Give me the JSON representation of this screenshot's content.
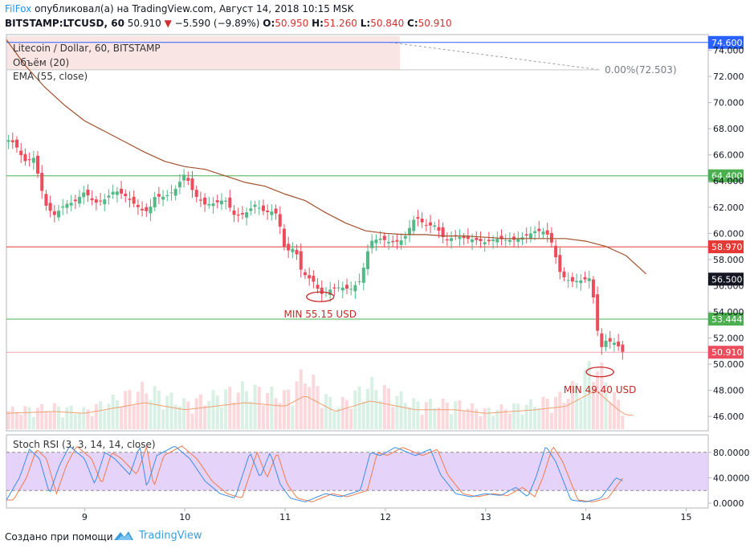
{
  "header": {
    "author": "FilFox",
    "published_text": "опубликовал(а) на TradingView.com, Август 14, 2018 10:15 MSK",
    "symbol": "BITSTAMP:LTCUSD, 60",
    "last": "50.910",
    "change": "−5.590 (−9.89%)",
    "o_label": "O:",
    "o": "50.950",
    "h_label": "H:",
    "h": "51.260",
    "l_label": "L:",
    "l": "50.840",
    "c_label": "C:",
    "c": "50.910"
  },
  "legend": {
    "title": "Litecoin / Dollar, 60, BITSTAMP",
    "volume": "Объём (20)",
    "ema": "EMA (55, close)",
    "stoch": "Stoch RSI (3, 3, 14, 14, close)"
  },
  "footer": {
    "created_with": "Создано при помощи",
    "brand": "TradingView"
  },
  "colors": {
    "up": "#53b987",
    "down": "#eb4d5c",
    "ema": "#a0522d",
    "stoch_k": "#3a8ee6",
    "stoch_d": "#f07a4a",
    "stoch_band": "#e0c8f8"
  },
  "chart_data": {
    "type": "candlestick",
    "title": "Litecoin / Dollar, 60, BITSTAMP",
    "y_ticks": [
      "74.000",
      "72.000",
      "70.000",
      "68.000",
      "66.000",
      "64.000",
      "62.000",
      "60.000",
      "58.000",
      "56.000",
      "54.000",
      "52.000",
      "50.000",
      "48.000",
      "46.000"
    ],
    "ylim": [
      44.9,
      75.2
    ],
    "x_ticks": [
      "9",
      "10",
      "11",
      "12",
      "13",
      "14",
      "15"
    ],
    "x_tick_days": [
      9,
      10,
      11,
      12,
      13,
      14,
      15
    ],
    "xlim": [
      8.22,
      15.22
    ],
    "ohlc_waypoints": [
      [
        8.22,
        67.2
      ],
      [
        8.3,
        66.9
      ],
      [
        8.4,
        65.5
      ],
      [
        8.5,
        65.8
      ],
      [
        8.55,
        63.9
      ],
      [
        8.62,
        62.0
      ],
      [
        8.7,
        61.4
      ],
      [
        8.8,
        62.2
      ],
      [
        8.9,
        62.4
      ],
      [
        9.0,
        63.2
      ],
      [
        9.1,
        62.3
      ],
      [
        9.2,
        62.6
      ],
      [
        9.3,
        63.3
      ],
      [
        9.4,
        62.9
      ],
      [
        9.5,
        62.2
      ],
      [
        9.6,
        61.6
      ],
      [
        9.65,
        61.9
      ],
      [
        9.7,
        62.8
      ],
      [
        9.8,
        62.8
      ],
      [
        9.9,
        63.3
      ],
      [
        10.0,
        64.6
      ],
      [
        10.05,
        63.7
      ],
      [
        10.1,
        62.9
      ],
      [
        10.2,
        62.2
      ],
      [
        10.3,
        62.3
      ],
      [
        10.4,
        62.6
      ],
      [
        10.5,
        61.3
      ],
      [
        10.6,
        61.5
      ],
      [
        10.7,
        62.2
      ],
      [
        10.8,
        61.6
      ],
      [
        10.9,
        61.7
      ],
      [
        10.95,
        60.5
      ],
      [
        11.0,
        58.6
      ],
      [
        11.1,
        58.9
      ],
      [
        11.15,
        57.3
      ],
      [
        11.2,
        56.8
      ],
      [
        11.3,
        56.2
      ],
      [
        11.35,
        55.3
      ],
      [
        11.45,
        55.7
      ],
      [
        11.55,
        55.9
      ],
      [
        11.65,
        55.7
      ],
      [
        11.75,
        56.4
      ],
      [
        11.85,
        59.4
      ],
      [
        11.95,
        59.6
      ],
      [
        12.05,
        59.3
      ],
      [
        12.15,
        59.4
      ],
      [
        12.2,
        59.8
      ],
      [
        12.3,
        61.3
      ],
      [
        12.4,
        60.6
      ],
      [
        12.5,
        60.6
      ],
      [
        12.6,
        59.4
      ],
      [
        12.7,
        59.8
      ],
      [
        12.8,
        59.6
      ],
      [
        12.9,
        59.5
      ],
      [
        13.0,
        59.3
      ],
      [
        13.1,
        59.6
      ],
      [
        13.2,
        59.5
      ],
      [
        13.3,
        59.5
      ],
      [
        13.4,
        59.8
      ],
      [
        13.5,
        60.2
      ],
      [
        13.6,
        60.1
      ],
      [
        13.65,
        59.5
      ],
      [
        13.75,
        56.8
      ],
      [
        13.85,
        56.3
      ],
      [
        13.95,
        56.4
      ],
      [
        14.05,
        56.6
      ],
      [
        14.1,
        53.5
      ],
      [
        14.14,
        51.1
      ],
      [
        14.2,
        51.8
      ],
      [
        14.3,
        51.6
      ],
      [
        14.37,
        50.9
      ]
    ],
    "ema_55": [
      [
        8.22,
        74.8
      ],
      [
        8.4,
        72.9
      ],
      [
        8.6,
        71.2
      ],
      [
        8.8,
        69.8
      ],
      [
        9.0,
        68.6
      ],
      [
        9.2,
        67.8
      ],
      [
        9.4,
        67.0
      ],
      [
        9.6,
        66.2
      ],
      [
        9.8,
        65.5
      ],
      [
        10.0,
        65.1
      ],
      [
        10.2,
        64.9
      ],
      [
        10.4,
        64.4
      ],
      [
        10.6,
        63.9
      ],
      [
        10.8,
        63.6
      ],
      [
        11.0,
        63.0
      ],
      [
        11.2,
        62.5
      ],
      [
        11.4,
        61.6
      ],
      [
        11.6,
        60.8
      ],
      [
        11.8,
        60.2
      ],
      [
        12.0,
        60.0
      ],
      [
        12.2,
        59.9
      ],
      [
        12.4,
        59.9
      ],
      [
        12.6,
        59.8
      ],
      [
        12.8,
        59.8
      ],
      [
        13.0,
        59.7
      ],
      [
        13.2,
        59.6
      ],
      [
        13.4,
        59.6
      ],
      [
        13.6,
        59.6
      ],
      [
        13.8,
        59.6
      ],
      [
        14.0,
        59.4
      ],
      [
        14.2,
        59.0
      ],
      [
        14.4,
        58.3
      ],
      [
        14.6,
        56.9
      ]
    ],
    "horizontal_levels": [
      {
        "price": "74.600",
        "color": "#2962ff"
      },
      {
        "price": "64.400",
        "color": "#4caf50"
      },
      {
        "price": "58.970",
        "color": "#e53935"
      },
      {
        "price": "56.500",
        "color": "#131722"
      },
      {
        "price": "53.444",
        "color": "#4caf50"
      },
      {
        "price": "50.910",
        "color": "#eb4d5c"
      }
    ],
    "level_values": [
      74.6,
      64.4,
      58.97,
      56.5,
      53.444,
      50.91
    ],
    "fib_label": "0.00%(72.503)",
    "fib_value": 72.503,
    "annotations": [
      {
        "text": "MIN 55.15 USD",
        "day": 11.35,
        "price": 55.15
      },
      {
        "text": "MIN 49.40 USD",
        "day": 14.14,
        "price": 49.4
      }
    ],
    "volume_waypoints": [
      [
        8.22,
        0.25
      ],
      [
        8.7,
        0.3
      ],
      [
        9.0,
        0.25
      ],
      [
        9.6,
        0.55
      ],
      [
        10.0,
        0.35
      ],
      [
        10.6,
        0.55
      ],
      [
        11.0,
        0.45
      ],
      [
        11.2,
        0.75
      ],
      [
        11.5,
        0.3
      ],
      [
        11.85,
        0.6
      ],
      [
        12.3,
        0.35
      ],
      [
        12.7,
        0.35
      ],
      [
        13.0,
        0.25
      ],
      [
        13.5,
        0.35
      ],
      [
        13.8,
        0.45
      ],
      [
        14.1,
        0.9
      ],
      [
        14.3,
        0.4
      ],
      [
        14.4,
        0.2
      ]
    ],
    "stoch_rsi": {
      "ticks": [
        "80.0000",
        "40.0000",
        "0.0000"
      ],
      "tick_values": [
        80,
        40,
        0
      ],
      "band": [
        20,
        80
      ],
      "k_waypoints": [
        [
          8.22,
          5
        ],
        [
          8.35,
          40
        ],
        [
          8.45,
          85
        ],
        [
          8.55,
          70
        ],
        [
          8.65,
          15
        ],
        [
          8.75,
          60
        ],
        [
          8.85,
          90
        ],
        [
          9.0,
          70
        ],
        [
          9.1,
          30
        ],
        [
          9.2,
          80
        ],
        [
          9.3,
          70
        ],
        [
          9.45,
          45
        ],
        [
          9.55,
          90
        ],
        [
          9.62,
          25
        ],
        [
          9.72,
          75
        ],
        [
          9.9,
          90
        ],
        [
          10.05,
          70
        ],
        [
          10.2,
          35
        ],
        [
          10.35,
          15
        ],
        [
          10.5,
          8
        ],
        [
          10.65,
          80
        ],
        [
          10.75,
          40
        ],
        [
          10.85,
          80
        ],
        [
          10.95,
          30
        ],
        [
          11.05,
          8
        ],
        [
          11.2,
          2
        ],
        [
          11.4,
          15
        ],
        [
          11.55,
          10
        ],
        [
          11.75,
          20
        ],
        [
          11.85,
          80
        ],
        [
          11.95,
          75
        ],
        [
          12.1,
          88
        ],
        [
          12.3,
          75
        ],
        [
          12.45,
          85
        ],
        [
          12.55,
          45
        ],
        [
          12.7,
          15
        ],
        [
          12.85,
          10
        ],
        [
          13.0,
          15
        ],
        [
          13.15,
          12
        ],
        [
          13.3,
          25
        ],
        [
          13.42,
          10
        ],
        [
          13.5,
          40
        ],
        [
          13.6,
          90
        ],
        [
          13.7,
          65
        ],
        [
          13.85,
          5
        ],
        [
          14.0,
          2
        ],
        [
          14.15,
          8
        ],
        [
          14.3,
          40
        ],
        [
          14.37,
          35
        ]
      ]
    }
  }
}
